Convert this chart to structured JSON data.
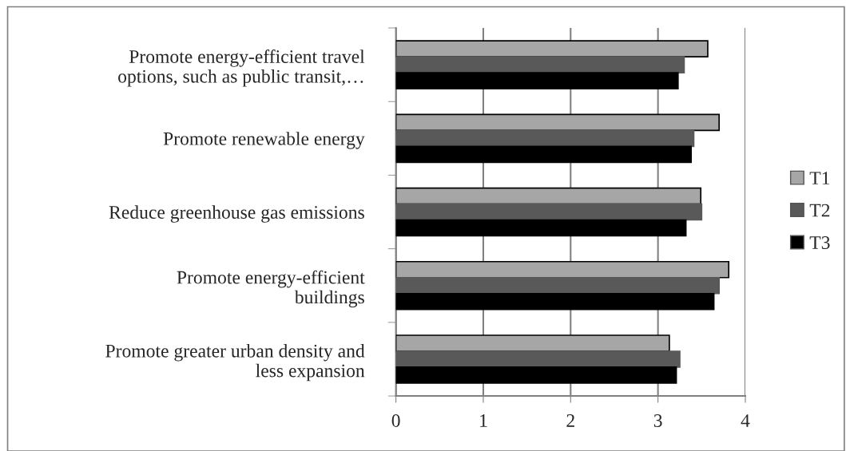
{
  "chart_data": {
    "type": "bar",
    "orientation": "horizontal",
    "categories": [
      "Promote energy-efficient travel\noptions, such as public transit,…",
      "Promote renewable energy",
      "Reduce greenhouse gas emissions",
      "Promote energy-efficient\nbuildings",
      "Promote greater urban density and\nless expansion"
    ],
    "series": [
      {
        "name": "T1",
        "color": "#a6a6a6",
        "values": [
          3.57,
          3.7,
          3.49,
          3.81,
          3.13
        ]
      },
      {
        "name": "T2",
        "color": "#595959",
        "values": [
          3.3,
          3.41,
          3.5,
          3.7,
          3.25
        ]
      },
      {
        "name": "T3",
        "color": "#000000",
        "values": [
          3.23,
          3.38,
          3.32,
          3.64,
          3.21
        ]
      }
    ],
    "xlim": [
      0,
      4
    ],
    "xticks": [
      0,
      1,
      2,
      3,
      4
    ],
    "grid": "x",
    "legend": "right"
  }
}
